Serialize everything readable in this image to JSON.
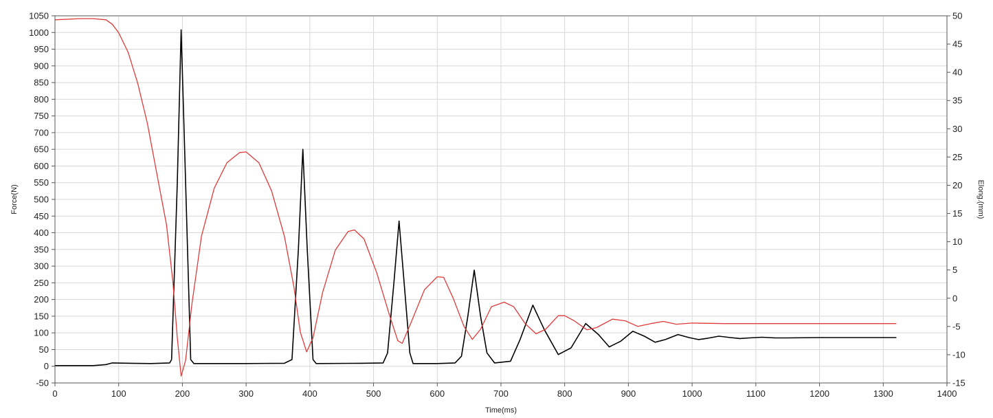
{
  "chart_data": {
    "type": "line",
    "xlabel": "Time(ms)",
    "ylabel": "Force(N)",
    "y2label": "Elong.(mm)",
    "xlim": [
      0,
      1400
    ],
    "ylim": [
      -50,
      1050
    ],
    "y2lim": [
      -15,
      50
    ],
    "grid": true,
    "x_ticks": [
      0,
      100,
      200,
      300,
      400,
      500,
      600,
      700,
      800,
      900,
      1000,
      1100,
      1200,
      1300,
      1400
    ],
    "y_ticks": [
      -50,
      0,
      50,
      100,
      150,
      200,
      250,
      300,
      350,
      400,
      450,
      500,
      550,
      600,
      650,
      700,
      750,
      800,
      850,
      900,
      950,
      1000,
      1050
    ],
    "y2_ticks": [
      -15,
      -10,
      -5,
      0,
      5,
      10,
      15,
      20,
      25,
      30,
      35,
      40,
      45,
      50
    ],
    "series": [
      {
        "axis": "left",
        "color": "#000000",
        "points": [
          [
            0,
            2
          ],
          [
            60,
            2
          ],
          [
            80,
            5
          ],
          [
            90,
            10
          ],
          [
            120,
            9
          ],
          [
            150,
            8
          ],
          [
            180,
            10
          ],
          [
            183,
            20
          ],
          [
            192,
            550
          ],
          [
            198,
            1008
          ],
          [
            205,
            550
          ],
          [
            213,
            20
          ],
          [
            218,
            8
          ],
          [
            300,
            8
          ],
          [
            360,
            9
          ],
          [
            372,
            20
          ],
          [
            382,
            350
          ],
          [
            389,
            650
          ],
          [
            396,
            350
          ],
          [
            405,
            20
          ],
          [
            410,
            8
          ],
          [
            480,
            9
          ],
          [
            515,
            10
          ],
          [
            522,
            40
          ],
          [
            532,
            250
          ],
          [
            540,
            435
          ],
          [
            548,
            250
          ],
          [
            557,
            40
          ],
          [
            562,
            8
          ],
          [
            600,
            8
          ],
          [
            628,
            10
          ],
          [
            638,
            30
          ],
          [
            648,
            150
          ],
          [
            658,
            288
          ],
          [
            668,
            150
          ],
          [
            678,
            40
          ],
          [
            690,
            10
          ],
          [
            715,
            15
          ],
          [
            730,
            80
          ],
          [
            750,
            183
          ],
          [
            768,
            110
          ],
          [
            790,
            35
          ],
          [
            810,
            55
          ],
          [
            833,
            128
          ],
          [
            853,
            95
          ],
          [
            870,
            58
          ],
          [
            888,
            75
          ],
          [
            907,
            105
          ],
          [
            925,
            90
          ],
          [
            942,
            72
          ],
          [
            958,
            80
          ],
          [
            978,
            95
          ],
          [
            995,
            86
          ],
          [
            1010,
            80
          ],
          [
            1025,
            84
          ],
          [
            1042,
            90
          ],
          [
            1060,
            86
          ],
          [
            1075,
            83
          ],
          [
            1090,
            85
          ],
          [
            1110,
            87
          ],
          [
            1130,
            85
          ],
          [
            1150,
            85
          ],
          [
            1200,
            86
          ],
          [
            1250,
            86
          ],
          [
            1320,
            86
          ]
        ]
      },
      {
        "axis": "right",
        "color": "#e03a3a",
        "points": [
          [
            0,
            49.3
          ],
          [
            40,
            49.5
          ],
          [
            60,
            49.5
          ],
          [
            80,
            49.3
          ],
          [
            90,
            48.5
          ],
          [
            100,
            47
          ],
          [
            115,
            43.5
          ],
          [
            130,
            38
          ],
          [
            145,
            31
          ],
          [
            160,
            22
          ],
          [
            175,
            13
          ],
          [
            185,
            3
          ],
          [
            192,
            -7
          ],
          [
            198,
            -13.8
          ],
          [
            205,
            -11
          ],
          [
            215,
            -1
          ],
          [
            230,
            11
          ],
          [
            250,
            19.5
          ],
          [
            270,
            24
          ],
          [
            290,
            25.8
          ],
          [
            300,
            25.9
          ],
          [
            320,
            24
          ],
          [
            340,
            19
          ],
          [
            360,
            11
          ],
          [
            375,
            2
          ],
          [
            385,
            -6
          ],
          [
            395,
            -9.5
          ],
          [
            405,
            -7
          ],
          [
            420,
            1
          ],
          [
            440,
            8.5
          ],
          [
            460,
            11.8
          ],
          [
            470,
            12.1
          ],
          [
            485,
            10.5
          ],
          [
            505,
            4.5
          ],
          [
            525,
            -3
          ],
          [
            538,
            -7.5
          ],
          [
            545,
            -8
          ],
          [
            560,
            -4
          ],
          [
            580,
            1.5
          ],
          [
            600,
            3.8
          ],
          [
            610,
            3.7
          ],
          [
            625,
            0
          ],
          [
            642,
            -5
          ],
          [
            655,
            -7.3
          ],
          [
            668,
            -5.5
          ],
          [
            685,
            -1.5
          ],
          [
            705,
            -0.7
          ],
          [
            720,
            -1.5
          ],
          [
            738,
            -4.5
          ],
          [
            755,
            -6.3
          ],
          [
            770,
            -5.5
          ],
          [
            790,
            -3.1
          ],
          [
            800,
            -3.1
          ],
          [
            815,
            -4
          ],
          [
            835,
            -5.6
          ],
          [
            850,
            -5.2
          ],
          [
            875,
            -3.7
          ],
          [
            895,
            -4
          ],
          [
            915,
            -5
          ],
          [
            935,
            -4.5
          ],
          [
            955,
            -4.1
          ],
          [
            975,
            -4.6
          ],
          [
            1000,
            -4.4
          ],
          [
            1050,
            -4.5
          ],
          [
            1100,
            -4.5
          ],
          [
            1200,
            -4.5
          ],
          [
            1320,
            -4.5
          ]
        ]
      }
    ]
  }
}
